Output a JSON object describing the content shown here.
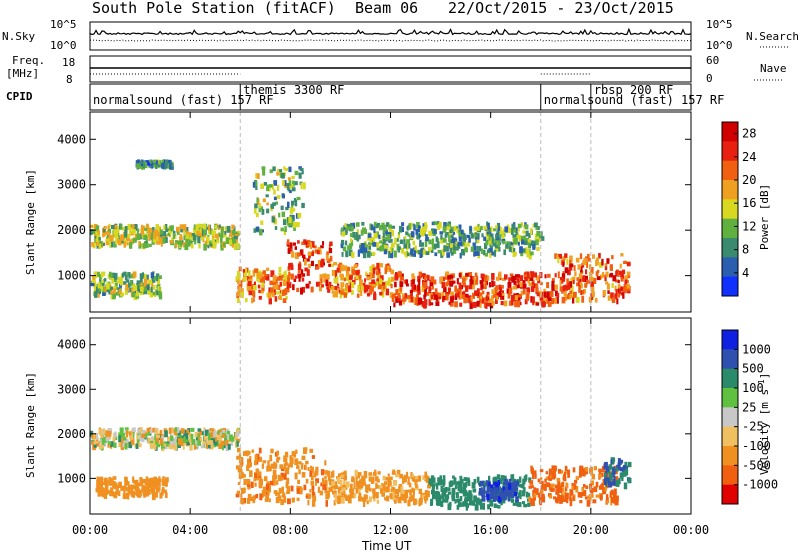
{
  "header": {
    "station": "South Pole Station (fitACF)",
    "beam": "Beam 06",
    "date_range": "22/Oct/2015 - 23/Oct/2015"
  },
  "aux": {
    "nsky_label": "N.Sky",
    "nsky_top": "10^5",
    "nsky_bottom": "10^0",
    "nsearch_label": "N.Search",
    "nsearch_top": "10^5",
    "nsearch_bottom": "10^0",
    "freq_label_1": "Freq.",
    "freq_label_2": "[MHz]",
    "freq_top": "18",
    "freq_bottom": "8",
    "nave_label": "Nave",
    "nave_top": "60",
    "nave_bottom": "0",
    "cpid_label": "CPID"
  },
  "cpid_modes": [
    {
      "start_hour": 0.0,
      "label": "normalsound (fast) 157 RF"
    },
    {
      "start_hour": 6.0,
      "label": "themis 3300 RF"
    },
    {
      "start_hour": 18.0,
      "label": "normalsound (fast) 157 RF"
    },
    {
      "start_hour": 20.0,
      "label": "rbsp 200 RF"
    }
  ],
  "chart_data": [
    {
      "type": "heatmap",
      "name": "power",
      "x_ticks": [
        "00:00",
        "04:00",
        "08:00",
        "12:00",
        "16:00",
        "20:00",
        "00:00"
      ],
      "x_tick_hours": [
        0,
        4,
        8,
        12,
        16,
        20,
        24
      ],
      "xlabel": "Time UT",
      "ylabel": "Slant Range [km]",
      "y_ticks": [
        1000,
        2000,
        3000,
        4000
      ],
      "ylim": [
        200,
        4600
      ],
      "xlim": [
        0,
        24
      ],
      "colorbar": {
        "label": "Power [dB]",
        "ticks": [
          4,
          8,
          12,
          16,
          20,
          24,
          28
        ],
        "range": [
          0,
          30
        ],
        "colors": [
          "#1030ff",
          "#2a5fb0",
          "#3a8a70",
          "#60b040",
          "#d8d820",
          "#f0a020",
          "#f06010",
          "#e82010",
          "#d00000"
        ]
      },
      "features": [
        {
          "t0": 0.0,
          "t1": 5.9,
          "r0": 1700,
          "r1": 2150,
          "level": 14
        },
        {
          "t0": 1.8,
          "t1": 3.2,
          "r0": 3450,
          "r1": 3560,
          "level": 8
        },
        {
          "t0": 0.0,
          "t1": 2.8,
          "r0": 600,
          "r1": 1100,
          "level": 12
        },
        {
          "t0": 5.8,
          "t1": 7.8,
          "r0": 500,
          "r1": 1200,
          "level": 20
        },
        {
          "t0": 7.8,
          "t1": 9.6,
          "r0": 700,
          "r1": 1800,
          "level": 24
        },
        {
          "t0": 9.6,
          "t1": 12.0,
          "r0": 600,
          "r1": 1300,
          "level": 20
        },
        {
          "t0": 12.0,
          "t1": 18.5,
          "r0": 400,
          "r1": 1100,
          "level": 24
        },
        {
          "t0": 18.5,
          "t1": 21.5,
          "r0": 500,
          "r1": 1500,
          "level": 22
        },
        {
          "t0": 10.0,
          "t1": 18.0,
          "r0": 1500,
          "r1": 2200,
          "level": 10
        },
        {
          "t0": 6.5,
          "t1": 8.5,
          "r0": 2000,
          "r1": 3500,
          "level": 12
        }
      ]
    },
    {
      "type": "heatmap",
      "name": "velocity",
      "x_ticks": [
        "00:00",
        "04:00",
        "08:00",
        "12:00",
        "16:00",
        "20:00",
        "00:00"
      ],
      "x_tick_hours": [
        0,
        4,
        8,
        12,
        16,
        20,
        24
      ],
      "xlabel": "Time UT",
      "ylabel": "Slant Range [km]",
      "y_ticks": [
        1000,
        2000,
        3000,
        4000
      ],
      "ylim": [
        200,
        4600
      ],
      "xlim": [
        0,
        24
      ],
      "colorbar": {
        "label": "Velocity [m s^-1]",
        "ticks": [
          "1000",
          "500",
          "100",
          "25",
          "-25",
          "-100",
          "-500",
          "-1000"
        ],
        "colors": [
          "#1020e0",
          "#3050b0",
          "#2a8a6a",
          "#60c040",
          "#c8c8c8",
          "#f0c060",
          "#f09020",
          "#f06010",
          "#e00000"
        ]
      },
      "features": [
        {
          "t0": 0.0,
          "t1": 5.9,
          "r0": 1750,
          "r1": 2150,
          "vel": 0
        },
        {
          "t0": 0.2,
          "t1": 3.0,
          "r0": 650,
          "r1": 1050,
          "vel": -300
        },
        {
          "t0": 5.8,
          "t1": 9.5,
          "r0": 500,
          "r1": 1700,
          "vel": -400
        },
        {
          "t0": 9.5,
          "t1": 13.5,
          "r0": 500,
          "r1": 1200,
          "vel": -200
        },
        {
          "t0": 13.5,
          "t1": 17.5,
          "r0": 400,
          "r1": 1100,
          "vel": 300
        },
        {
          "t0": 15.5,
          "t1": 17.0,
          "r0": 600,
          "r1": 1000,
          "vel": 900
        },
        {
          "t0": 17.5,
          "t1": 21.0,
          "r0": 500,
          "r1": 1300,
          "vel": -600
        },
        {
          "t0": 20.5,
          "t1": 21.5,
          "r0": 900,
          "r1": 1500,
          "vel": 500
        }
      ]
    }
  ]
}
